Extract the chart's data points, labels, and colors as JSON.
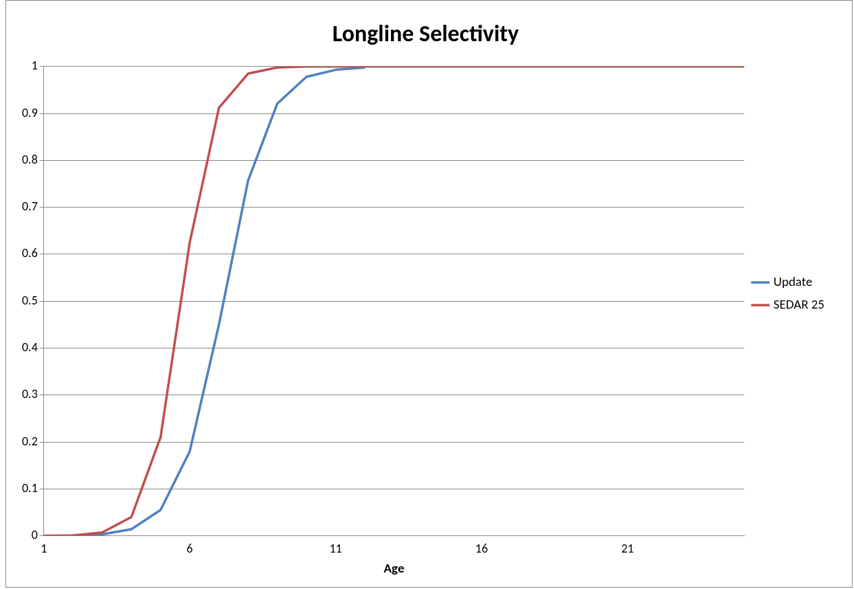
{
  "chart_data": {
    "type": "line",
    "title": "Longline Selectivity",
    "xlabel": "Age",
    "categories": [
      "1",
      null,
      null,
      null,
      null,
      "6",
      null,
      null,
      null,
      null,
      "11",
      null,
      null,
      null,
      null,
      "16",
      null,
      null,
      null,
      null,
      "21",
      null,
      null,
      null,
      null
    ],
    "series": [
      {
        "name": "Update",
        "color": "#4f81bd",
        "values": [
          null,
          0,
          0.003,
          0.014,
          0.055,
          0.18,
          0.45,
          0.757,
          0.921,
          0.978,
          0.993,
          0.998,
          null,
          null,
          null,
          null,
          null,
          null,
          null,
          null,
          null,
          null,
          null,
          null,
          null
        ]
      },
      {
        "name": "SEDAR 25",
        "color": "#c0504d",
        "values": [
          0,
          0.001,
          0.007,
          0.04,
          0.21,
          0.625,
          0.912,
          0.985,
          0.998,
          1,
          1,
          1,
          1,
          1,
          1,
          1,
          1,
          1,
          1,
          1,
          1,
          1,
          1,
          1,
          1
        ]
      }
    ],
    "ylim": [
      0,
      1
    ],
    "yticks": [
      0,
      0.1,
      0.2,
      0.3,
      0.4,
      0.5,
      0.6,
      0.7,
      0.8,
      0.9,
      1
    ],
    "grid": "y",
    "legend": "right",
    "marker": "none",
    "line_style": "solid"
  }
}
